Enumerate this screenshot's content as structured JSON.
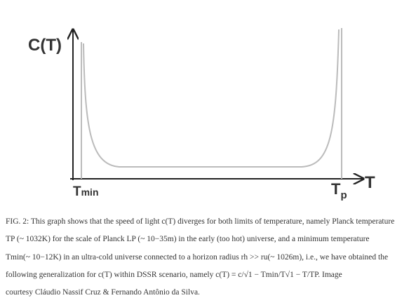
{
  "figure": {
    "y_axis_label": "C(T)",
    "x_axis_label": "T",
    "left_mark": {
      "base": "T",
      "sub": "min"
    },
    "right_mark": {
      "base": "T",
      "sub": "p"
    }
  },
  "caption": {
    "lines": [
      "FIG. 2: This graph shows that the speed of light c(T) diverges for both limits of temperature, namely Planck temperature",
      "TP (~ 1032K) for the scale of Planck LP (~ 10−35m) in the early (too hot) universe, and a minimum temperature",
      "Tmin(~ 10−12K) in an ultra-cold universe connected to a horizon radius rh >> ru(~ 1026m), i.e., we have obtained the",
      "following generalization for c(T) within DSSR scenario, namely c(T) = c/√1 − Tmin/T√1 − T/TP. Image",
      "courtesy Cláudio Nassif Cruz & Fernando Antônio da Silva."
    ]
  }
}
